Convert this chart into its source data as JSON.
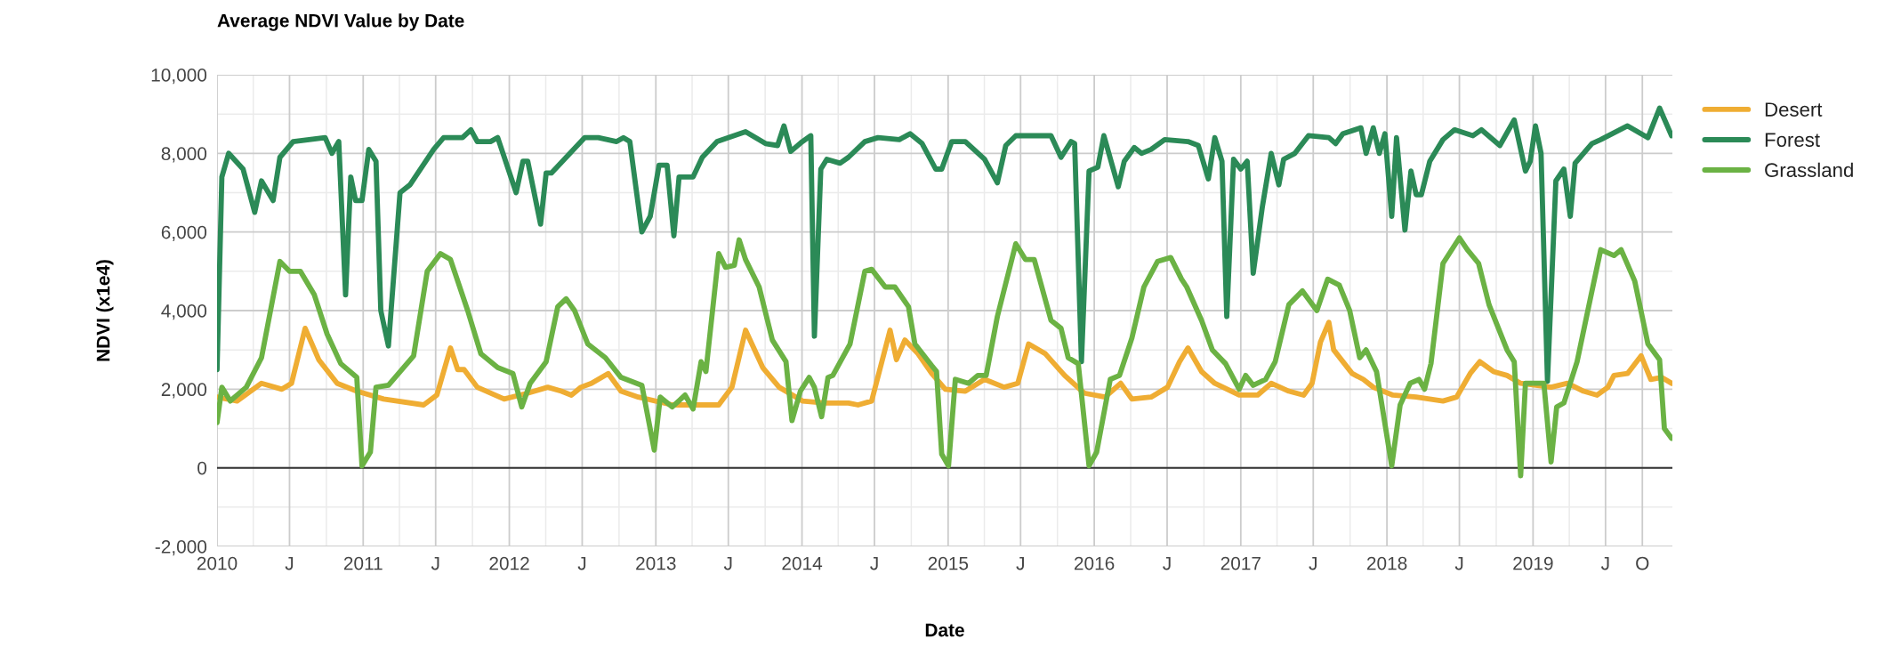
{
  "chart_data": {
    "type": "line",
    "title": "Average NDVI Value by Date",
    "xlabel": "Date",
    "ylabel": "NDVI (x1e4)",
    "xlim": [
      "2010-01-01",
      "2019-12-15"
    ],
    "xticks": [
      {
        "value": "2010-01-01",
        "label": "2010"
      },
      {
        "value": "2010-07-01",
        "label": "J"
      },
      {
        "value": "2011-01-01",
        "label": "2011"
      },
      {
        "value": "2011-07-01",
        "label": "J"
      },
      {
        "value": "2012-01-01",
        "label": "2012"
      },
      {
        "value": "2012-07-01",
        "label": "J"
      },
      {
        "value": "2013-01-01",
        "label": "2013"
      },
      {
        "value": "2013-07-01",
        "label": "J"
      },
      {
        "value": "2014-01-01",
        "label": "2014"
      },
      {
        "value": "2014-07-01",
        "label": "J"
      },
      {
        "value": "2015-01-01",
        "label": "2015"
      },
      {
        "value": "2015-07-01",
        "label": "J"
      },
      {
        "value": "2016-01-01",
        "label": "2016"
      },
      {
        "value": "2016-07-01",
        "label": "J"
      },
      {
        "value": "2017-01-01",
        "label": "2017"
      },
      {
        "value": "2017-07-01",
        "label": "J"
      },
      {
        "value": "2018-01-01",
        "label": "2018"
      },
      {
        "value": "2018-07-01",
        "label": "J"
      },
      {
        "value": "2019-01-01",
        "label": "2019"
      },
      {
        "value": "2019-07-01",
        "label": "J"
      },
      {
        "value": "2019-10-01",
        "label": "O"
      }
    ],
    "ylim": [
      -2000,
      10000
    ],
    "yticks": [
      {
        "value": -2000,
        "label": "-2,000"
      },
      {
        "value": 0,
        "label": "0"
      },
      {
        "value": 2000,
        "label": "2,000"
      },
      {
        "value": 4000,
        "label": "4,000"
      },
      {
        "value": 6000,
        "label": "6,000"
      },
      {
        "value": 8000,
        "label": "8,000"
      },
      {
        "value": 10000,
        "label": "10,000"
      }
    ],
    "grid": true,
    "legend": "top right",
    "marker": "none",
    "line_style": "solid",
    "ref_lines": [
      {
        "axis": "y",
        "value": 0,
        "color": "#333333"
      }
    ],
    "series": [
      {
        "name": "Desert",
        "color": "#efad33",
        "x": [
          "2010-01-01",
          "2010-02-20",
          "2010-04-22",
          "2010-06-12",
          "2010-07-06",
          "2010-08-09",
          "2010-09-12",
          "2010-10-28",
          "2010-12-16",
          "2011-02-21",
          "2011-06-01",
          "2011-07-04",
          "2011-08-07",
          "2011-08-25",
          "2011-09-10",
          "2011-10-13",
          "2011-12-19",
          "2012-02-16",
          "2012-04-06",
          "2012-05-10",
          "2012-06-04",
          "2012-06-28",
          "2012-07-24",
          "2012-09-04",
          "2012-10-06",
          "2012-11-18",
          "2013-02-11",
          "2013-06-07",
          "2013-07-10",
          "2013-08-13",
          "2013-09-25",
          "2013-11-05",
          "2014-01-02",
          "2014-03-01",
          "2014-04-27",
          "2014-05-21",
          "2014-06-24",
          "2014-08-09",
          "2014-08-25",
          "2014-09-15",
          "2014-10-18",
          "2014-11-21",
          "2014-12-25",
          "2015-02-13",
          "2015-04-02",
          "2015-05-21",
          "2015-06-24",
          "2015-07-21",
          "2015-09-01",
          "2015-10-19",
          "2015-12-07",
          "2016-01-28",
          "2016-03-07",
          "2016-04-04",
          "2016-05-22",
          "2016-07-02",
          "2016-08-01",
          "2016-08-22",
          "2016-09-25",
          "2016-10-28",
          "2016-12-28",
          "2017-02-12",
          "2017-03-18",
          "2017-05-01",
          "2017-06-07",
          "2017-06-28",
          "2017-07-19",
          "2017-08-09",
          "2017-08-21",
          "2017-10-06",
          "2017-11-03",
          "2017-11-28",
          "2018-01-16",
          "2018-03-15",
          "2018-05-21",
          "2018-06-24",
          "2018-07-28",
          "2018-08-21",
          "2018-09-24",
          "2018-10-28",
          "2018-12-01",
          "2019-02-15",
          "2019-03-28",
          "2019-05-07",
          "2019-06-10",
          "2019-07-07",
          "2019-07-22",
          "2019-08-25",
          "2019-09-28",
          "2019-10-22",
          "2019-11-18",
          "2019-12-13"
        ],
        "values": [
          1800,
          1700,
          2150,
          2000,
          2150,
          3550,
          2750,
          2150,
          1950,
          1750,
          1600,
          1850,
          3050,
          2500,
          2500,
          2050,
          1750,
          1900,
          2050,
          1950,
          1850,
          2050,
          2150,
          2400,
          1950,
          1800,
          1600,
          1600,
          2050,
          3500,
          2550,
          2050,
          1700,
          1650,
          1650,
          1600,
          1700,
          3500,
          2750,
          3250,
          2900,
          2400,
          2000,
          1950,
          2250,
          2050,
          2150,
          3150,
          2900,
          2350,
          1900,
          1800,
          2150,
          1750,
          1800,
          2050,
          2700,
          3050,
          2450,
          2150,
          1850,
          1850,
          2150,
          1950,
          1850,
          2150,
          3200,
          3700,
          3000,
          2400,
          2250,
          2050,
          1850,
          1800,
          1700,
          1800,
          2400,
          2700,
          2450,
          2350,
          2150,
          2050,
          2150,
          1950,
          1850,
          2050,
          2350,
          2400,
          2850,
          2250,
          2300,
          2150
        ]
      },
      {
        "name": "Forest",
        "color": "#2b8a57",
        "x": [
          "2010-01-01",
          "2010-01-13",
          "2010-01-30",
          "2010-03-07",
          "2010-04-05",
          "2010-04-22",
          "2010-05-21",
          "2010-06-07",
          "2010-07-10",
          "2010-09-28",
          "2010-10-15",
          "2010-11-01",
          "2010-11-18",
          "2010-12-01",
          "2010-12-13",
          "2010-12-29",
          "2011-01-15",
          "2011-02-02",
          "2011-02-14",
          "2011-03-05",
          "2011-04-03",
          "2011-04-28",
          "2011-06-26",
          "2011-07-21",
          "2011-09-06",
          "2011-09-27",
          "2011-10-13",
          "2011-11-15",
          "2011-12-03",
          "2012-01-18",
          "2012-02-04",
          "2012-02-16",
          "2012-03-19",
          "2012-04-02",
          "2012-04-15",
          "2012-07-07",
          "2012-08-10",
          "2012-09-25",
          "2012-10-12",
          "2012-10-28",
          "2012-11-27",
          "2012-12-18",
          "2013-01-09",
          "2013-01-29",
          "2013-02-15",
          "2013-02-28",
          "2013-04-04",
          "2013-04-27",
          "2013-06-03",
          "2013-08-13",
          "2013-10-02",
          "2013-11-01",
          "2013-11-17",
          "2013-12-04",
          "2014-01-02",
          "2014-01-23",
          "2014-02-01",
          "2014-02-17",
          "2014-03-04",
          "2014-04-06",
          "2014-04-27",
          "2014-06-07",
          "2014-07-10",
          "2014-09-01",
          "2014-09-28",
          "2014-10-28",
          "2014-12-01",
          "2014-12-16",
          "2015-01-10",
          "2015-02-13",
          "2015-04-02",
          "2015-05-04",
          "2015-05-25",
          "2015-06-19",
          "2015-09-15",
          "2015-10-10",
          "2015-11-04",
          "2015-11-13",
          "2015-11-30",
          "2015-12-19",
          "2016-01-10",
          "2016-01-25",
          "2016-03-01",
          "2016-03-16",
          "2016-04-10",
          "2016-04-28",
          "2016-05-22",
          "2016-06-25",
          "2016-08-22",
          "2016-09-17",
          "2016-10-12",
          "2016-10-28",
          "2016-11-15",
          "2016-11-27",
          "2016-12-14",
          "2017-01-01",
          "2017-01-17",
          "2017-02-01",
          "2017-02-24",
          "2017-03-18",
          "2017-04-06",
          "2017-04-18",
          "2017-05-16",
          "2017-06-19",
          "2017-08-09",
          "2017-08-26",
          "2017-09-13",
          "2017-10-28",
          "2017-11-10",
          "2017-11-28",
          "2017-12-13",
          "2017-12-27",
          "2018-01-13",
          "2018-01-25",
          "2018-02-15",
          "2018-03-02",
          "2018-03-15",
          "2018-03-28",
          "2018-04-18",
          "2018-05-21",
          "2018-06-19",
          "2018-08-04",
          "2018-08-25",
          "2018-10-10",
          "2018-11-15",
          "2018-12-13",
          "2018-12-25",
          "2019-01-07",
          "2019-01-21",
          "2019-02-06",
          "2019-02-27",
          "2019-03-19",
          "2019-04-04",
          "2019-04-16",
          "2019-05-28",
          "2019-06-19",
          "2019-08-25",
          "2019-10-15",
          "2019-11-13",
          "2019-12-13"
        ],
        "values": [
          2500,
          7400,
          8000,
          7600,
          6500,
          7300,
          6800,
          7900,
          8300,
          8400,
          8000,
          8300,
          4400,
          7400,
          6800,
          6800,
          8100,
          7800,
          4000,
          3100,
          7000,
          7200,
          8100,
          8400,
          8400,
          8600,
          8300,
          8300,
          8400,
          7000,
          7800,
          7800,
          6200,
          7500,
          7500,
          8400,
          8400,
          8300,
          8400,
          8300,
          6000,
          6400,
          7700,
          7700,
          5900,
          7400,
          7400,
          7900,
          8300,
          8550,
          8250,
          8200,
          8700,
          8050,
          8300,
          8450,
          3350,
          7600,
          7850,
          7750,
          7900,
          8300,
          8400,
          8350,
          8500,
          8250,
          7600,
          7600,
          8300,
          8300,
          7850,
          7250,
          8200,
          8450,
          8450,
          7900,
          8300,
          8250,
          2700,
          7550,
          7650,
          8450,
          7150,
          7800,
          8150,
          8000,
          8100,
          8350,
          8300,
          8200,
          7350,
          8400,
          7800,
          3850,
          7850,
          7600,
          7800,
          4950,
          6650,
          8000,
          7200,
          7850,
          8000,
          8450,
          8400,
          8250,
          8500,
          8650,
          8000,
          8650,
          8000,
          8500,
          6400,
          8400,
          6050,
          7550,
          6950,
          6950,
          7800,
          8350,
          8600,
          8450,
          8600,
          8200,
          8850,
          7550,
          7800,
          8700,
          8000,
          2200,
          7300,
          7600,
          6400,
          7750,
          8250,
          8350,
          8700,
          8400,
          9150,
          8450
        ]
      },
      {
        "name": "Grassland",
        "color": "#6bb244",
        "x": [
          "2010-01-01",
          "2010-01-13",
          "2010-02-03",
          "2010-03-15",
          "2010-04-22",
          "2010-06-07",
          "2010-07-01",
          "2010-07-28",
          "2010-09-01",
          "2010-10-03",
          "2010-11-06",
          "2010-12-16",
          "2010-12-29",
          "2011-01-19",
          "2011-02-02",
          "2011-03-05",
          "2011-05-07",
          "2011-06-10",
          "2011-07-13",
          "2011-08-07",
          "2011-09-19",
          "2011-10-22",
          "2011-12-03",
          "2012-01-10",
          "2012-02-01",
          "2012-02-22",
          "2012-04-02",
          "2012-05-01",
          "2012-05-22",
          "2012-06-12",
          "2012-07-15",
          "2012-08-28",
          "2012-10-06",
          "2012-11-27",
          "2012-12-28",
          "2013-01-12",
          "2013-02-11",
          "2013-03-15",
          "2013-04-04",
          "2013-04-24",
          "2013-05-06",
          "2013-06-07",
          "2013-06-24",
          "2013-07-16",
          "2013-07-28",
          "2013-08-13",
          "2013-09-16",
          "2013-10-19",
          "2013-11-22",
          "2013-12-07",
          "2013-12-28",
          "2014-01-19",
          "2014-02-01",
          "2014-02-19",
          "2014-03-07",
          "2014-03-19",
          "2014-05-01",
          "2014-06-07",
          "2014-06-24",
          "2014-07-28",
          "2014-08-21",
          "2014-09-24",
          "2014-10-10",
          "2014-11-21",
          "2014-12-03",
          "2014-12-16",
          "2015-01-02",
          "2015-01-19",
          "2015-02-21",
          "2015-03-16",
          "2015-04-06",
          "2015-05-04",
          "2015-06-19",
          "2015-07-13",
          "2015-08-04",
          "2015-09-15",
          "2015-10-10",
          "2015-10-28",
          "2015-11-22",
          "2015-12-19",
          "2016-01-07",
          "2016-02-10",
          "2016-03-04",
          "2016-04-04",
          "2016-05-04",
          "2016-06-07",
          "2016-07-10",
          "2016-08-06",
          "2016-08-19",
          "2016-09-25",
          "2016-10-22",
          "2016-11-24",
          "2016-12-28",
          "2017-01-13",
          "2017-02-01",
          "2017-03-04",
          "2017-03-28",
          "2017-05-01",
          "2017-06-04",
          "2017-07-10",
          "2017-08-06",
          "2017-09-04",
          "2017-09-30",
          "2017-10-25",
          "2017-11-10",
          "2017-12-06",
          "2018-01-13",
          "2018-02-03",
          "2018-02-28",
          "2018-03-22",
          "2018-04-05",
          "2018-04-21",
          "2018-05-21",
          "2018-07-01",
          "2018-07-21",
          "2018-08-18",
          "2018-09-13",
          "2018-10-28",
          "2018-11-15",
          "2018-12-01",
          "2018-12-13",
          "2019-01-28",
          "2019-02-15",
          "2019-03-01",
          "2019-03-19",
          "2019-04-21",
          "2019-05-25",
          "2019-06-19",
          "2019-07-22",
          "2019-08-09",
          "2019-09-12",
          "2019-10-15",
          "2019-11-13",
          "2019-11-25",
          "2019-12-13"
        ],
        "values": [
          1150,
          2050,
          1700,
          2050,
          2800,
          5250,
          5000,
          5000,
          4400,
          3400,
          2650,
          2300,
          50,
          400,
          2050,
          2100,
          2850,
          5000,
          5450,
          5300,
          4000,
          2900,
          2550,
          2400,
          1550,
          2150,
          2700,
          4100,
          4300,
          4000,
          3150,
          2800,
          2300,
          2100,
          450,
          1800,
          1550,
          1850,
          1500,
          2700,
          2450,
          5450,
          5100,
          5150,
          5800,
          5300,
          4600,
          3250,
          2700,
          1200,
          1950,
          2300,
          2050,
          1300,
          2300,
          2350,
          3150,
          5000,
          5050,
          4600,
          4600,
          4100,
          3150,
          2600,
          2450,
          350,
          50,
          2250,
          2150,
          2350,
          2350,
          3850,
          5700,
          5300,
          5300,
          3750,
          3550,
          2800,
          2650,
          50,
          400,
          2250,
          2350,
          3300,
          4600,
          5250,
          5350,
          4800,
          4600,
          3750,
          3000,
          2650,
          2000,
          2350,
          2100,
          2250,
          2700,
          4150,
          4500,
          4000,
          4800,
          4650,
          4000,
          2800,
          3000,
          2450,
          50,
          1600,
          2150,
          2250,
          2000,
          2650,
          5200,
          5850,
          5550,
          5200,
          4150,
          3000,
          2700,
          -200,
          2150,
          2150,
          150,
          1550,
          1650,
          2700,
          4350,
          5550,
          5400,
          5550,
          4750,
          3150,
          2750,
          1000,
          750
        ]
      }
    ]
  }
}
